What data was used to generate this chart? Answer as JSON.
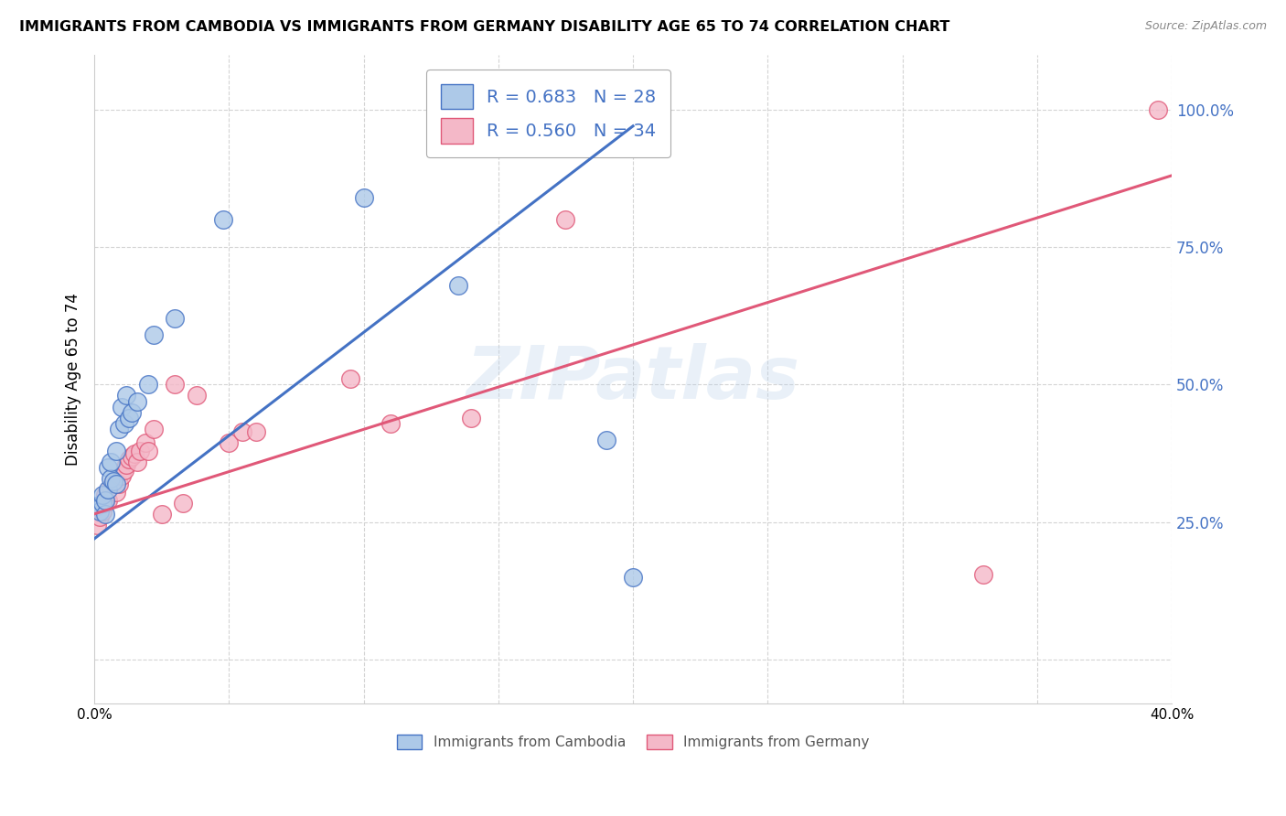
{
  "title": "IMMIGRANTS FROM CAMBODIA VS IMMIGRANTS FROM GERMANY DISABILITY AGE 65 TO 74 CORRELATION CHART",
  "source": "Source: ZipAtlas.com",
  "ylabel": "Disability Age 65 to 74",
  "xlim": [
    0.0,
    0.4
  ],
  "ylim": [
    -0.08,
    1.1
  ],
  "xticks": [
    0.0,
    0.05,
    0.1,
    0.15,
    0.2,
    0.25,
    0.3,
    0.35,
    0.4
  ],
  "yticks_right": [
    0.0,
    0.25,
    0.5,
    0.75,
    1.0
  ],
  "ytick_labels_right": [
    "",
    "25.0%",
    "50.0%",
    "75.0%",
    "100.0%"
  ],
  "cambodia_color": "#adc9e8",
  "cambodia_line_color": "#4472c4",
  "germany_color": "#f4b8c8",
  "germany_line_color": "#e05878",
  "R_cambodia": 0.683,
  "N_cambodia": 28,
  "R_germany": 0.56,
  "N_germany": 34,
  "watermark": "ZIPatlas",
  "background_color": "#ffffff",
  "grid_color": "#d4d4d4",
  "cambodia_x": [
    0.001,
    0.002,
    0.003,
    0.003,
    0.004,
    0.004,
    0.005,
    0.005,
    0.006,
    0.006,
    0.007,
    0.008,
    0.008,
    0.009,
    0.01,
    0.011,
    0.012,
    0.013,
    0.014,
    0.016,
    0.02,
    0.022,
    0.03,
    0.048,
    0.1,
    0.135,
    0.19,
    0.2
  ],
  "cambodia_y": [
    0.28,
    0.27,
    0.285,
    0.3,
    0.265,
    0.29,
    0.31,
    0.35,
    0.33,
    0.36,
    0.325,
    0.32,
    0.38,
    0.42,
    0.46,
    0.43,
    0.48,
    0.44,
    0.45,
    0.47,
    0.5,
    0.59,
    0.62,
    0.8,
    0.84,
    0.68,
    0.4,
    0.15
  ],
  "germany_x": [
    0.001,
    0.002,
    0.003,
    0.004,
    0.004,
    0.005,
    0.006,
    0.007,
    0.008,
    0.009,
    0.01,
    0.011,
    0.012,
    0.013,
    0.014,
    0.015,
    0.016,
    0.017,
    0.019,
    0.02,
    0.022,
    0.025,
    0.03,
    0.033,
    0.038,
    0.05,
    0.055,
    0.06,
    0.095,
    0.11,
    0.14,
    0.175,
    0.33,
    0.395
  ],
  "germany_y": [
    0.245,
    0.26,
    0.27,
    0.285,
    0.3,
    0.29,
    0.315,
    0.325,
    0.305,
    0.32,
    0.335,
    0.345,
    0.355,
    0.365,
    0.37,
    0.375,
    0.36,
    0.38,
    0.395,
    0.38,
    0.42,
    0.265,
    0.5,
    0.285,
    0.48,
    0.395,
    0.415,
    0.415,
    0.51,
    0.43,
    0.44,
    0.8,
    0.155,
    1.0
  ],
  "blue_line_x0": 0.0,
  "blue_line_y0": 0.22,
  "blue_line_x1": 0.2,
  "blue_line_y1": 0.97,
  "pink_line_x0": 0.0,
  "pink_line_y0": 0.265,
  "pink_line_x1": 0.4,
  "pink_line_y1": 0.88
}
